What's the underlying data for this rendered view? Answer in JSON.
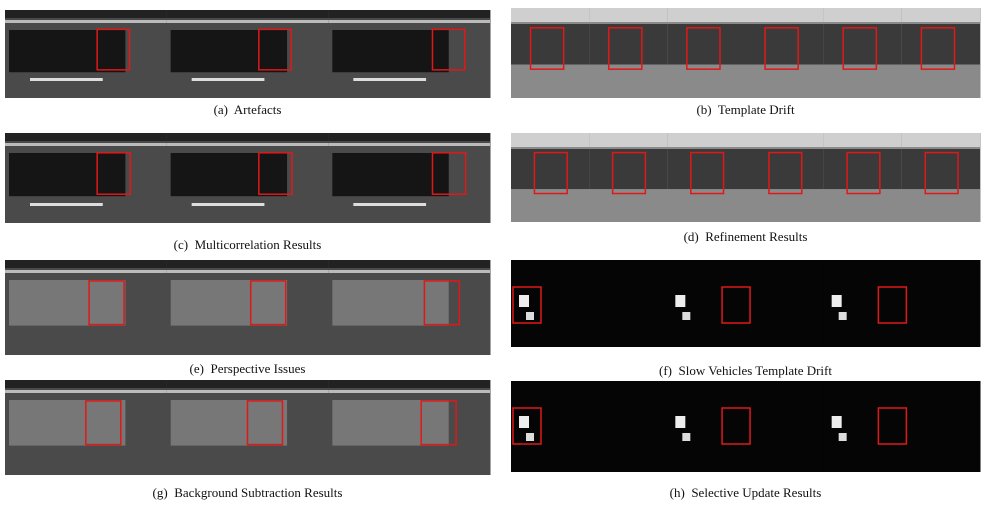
{
  "figure": {
    "subfigures": [
      {
        "caption": "(a)  Artefacts"
      },
      {
        "caption": "(b)  Template Drift"
      },
      {
        "caption": "(c)  Multicorrelation Results"
      },
      {
        "caption": "(d)  Refinement Results"
      },
      {
        "caption": "(e)  Perspective Issues"
      },
      {
        "caption": "(f)  Slow Vehicles Template Drift"
      },
      {
        "caption": "(g)  Background Subtraction Results"
      },
      {
        "caption": "(h)  Selective Update Results"
      }
    ]
  }
}
